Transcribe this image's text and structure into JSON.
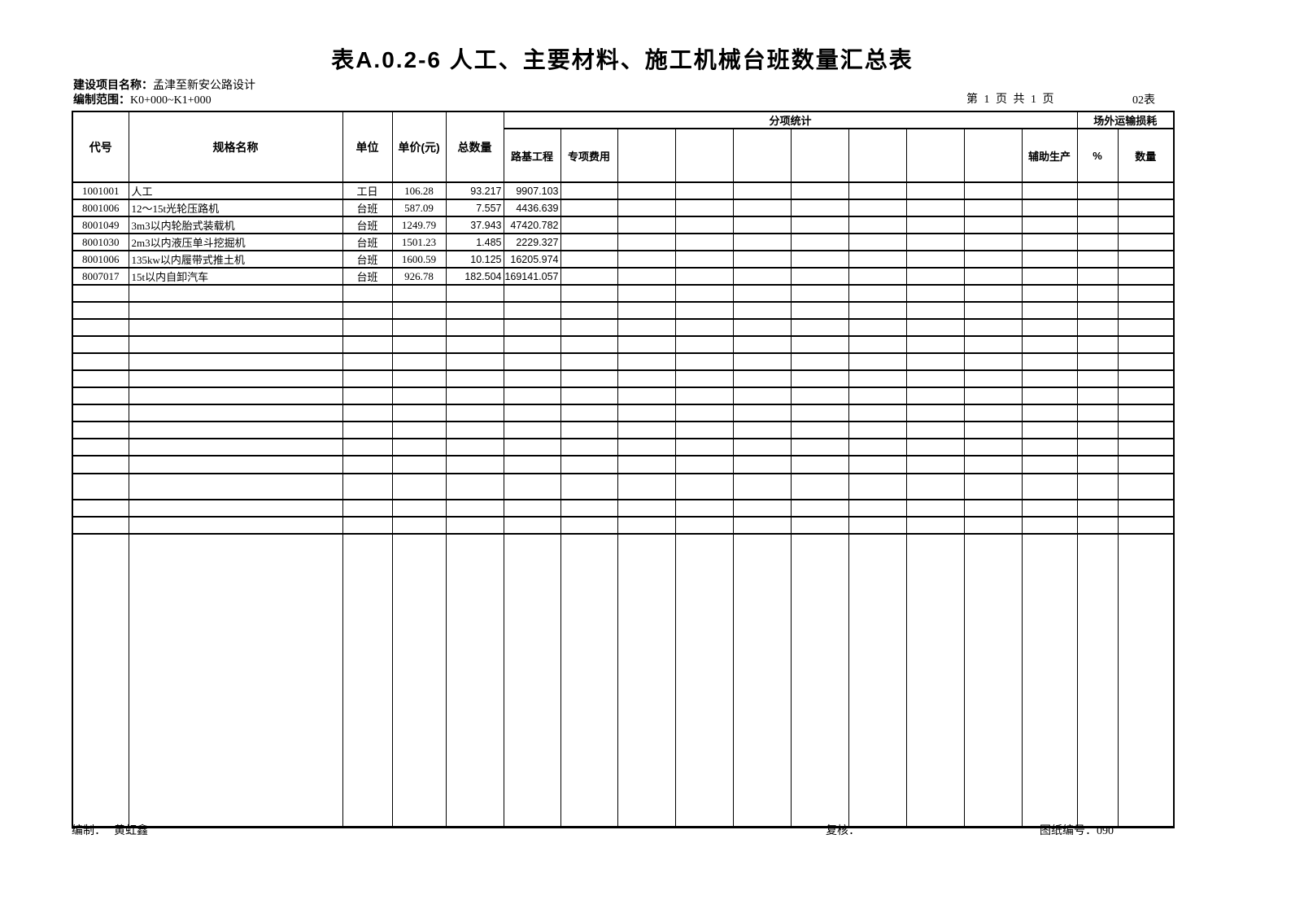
{
  "page": {
    "title": "表A.0.2-6 人工、主要材料、施工机械台班数量汇总表",
    "project_label": "建设项目名称：",
    "project_value": "孟津至新安公路设计",
    "scope_label": "编制范围：",
    "scope_value": "K0+000~K1+000",
    "page_info": "第 1 页 共 1 页",
    "table_no": "02表"
  },
  "table": {
    "headers": {
      "code": "代号",
      "name": "规格名称",
      "unit": "单位",
      "unit_price": "单价(元)",
      "total_qty": "总数量",
      "subitem_stats": "分项统计",
      "offsite_loss": "场外运输损耗",
      "roadbed": "路基工程",
      "special_fee": "专项费用",
      "aux_production": "辅助生产",
      "percent": "%",
      "qty": "数量"
    },
    "rows": [
      {
        "code": "1001001",
        "name": "人工",
        "unit": "工日",
        "price": "106.28",
        "total": "93.217",
        "roadbed": "9907.103"
      },
      {
        "code": "8001006",
        "name": "12～15t光轮压路机",
        "unit": "台班",
        "price": "587.09",
        "total": "7.557",
        "roadbed": "4436.639"
      },
      {
        "code": "8001049",
        "name": "3m3以内轮胎式装载机",
        "unit": "台班",
        "price": "1249.79",
        "total": "37.943",
        "roadbed": "47420.782"
      },
      {
        "code": "8001030",
        "name": "2m3以内液压单斗挖掘机",
        "unit": "台班",
        "price": "1501.23",
        "total": "1.485",
        "roadbed": "2229.327"
      },
      {
        "code": "8001006",
        "name": "135kw以内履带式推土机",
        "unit": "台班",
        "price": "1600.59",
        "total": "10.125",
        "roadbed": "16205.974"
      },
      {
        "code": "8007017",
        "name": "15t以内自卸汽车",
        "unit": "台班",
        "price": "926.78",
        "total": "182.504",
        "roadbed": "169141.057"
      }
    ]
  },
  "footer": {
    "maker_label": "编制：",
    "maker_value": "黄虹鑫",
    "checker_label": "复核：",
    "drawing_label": "图纸编号：",
    "drawing_value": "090"
  }
}
